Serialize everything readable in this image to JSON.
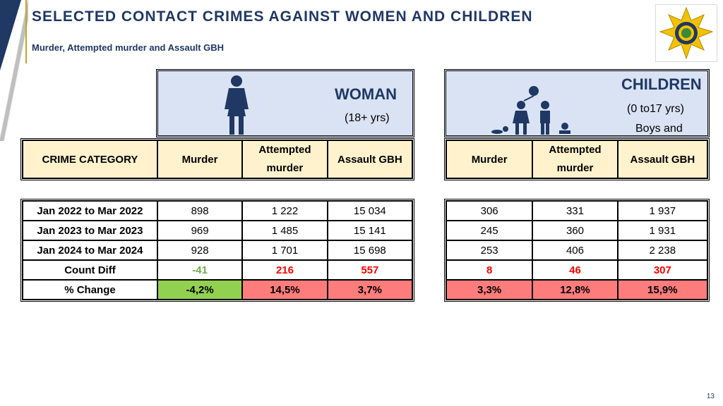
{
  "page": {
    "title": "SELECTED CONTACT CRIMES AGAINST WOMEN AND CHILDREN",
    "subtitle": "Murder, Attempted murder and Assault GBH",
    "page_number": "13"
  },
  "woman_header": {
    "title": "WOMAN",
    "age": "(18+ yrs)"
  },
  "children_header": {
    "title": "CHILDREN",
    "age": "(0 to17 yrs)",
    "note": "Boys and"
  },
  "columns": {
    "category": "CRIME CATEGORY",
    "murder": "Murder",
    "attempted_murder_1": "Attempted",
    "attempted_murder_2": "murder",
    "assault": "Assault GBH"
  },
  "rows": [
    {
      "label": "Jan 2022 to Mar 2022",
      "women": [
        "898",
        "1 222",
        "15 034"
      ],
      "children": [
        "306",
        "331",
        "1 937"
      ]
    },
    {
      "label": "Jan 2023 to Mar 2023",
      "women": [
        "969",
        "1 485",
        "15 141"
      ],
      "children": [
        "245",
        "360",
        "1 931"
      ]
    },
    {
      "label": "Jan 2024 to Mar 2024",
      "women": [
        "928",
        "1 701",
        "15 698"
      ],
      "children": [
        "253",
        "406",
        "2 238"
      ]
    }
  ],
  "count_diff": {
    "label": "Count Diff",
    "women": [
      "-41",
      "216",
      "557"
    ],
    "children": [
      "8",
      "46",
      "307"
    ]
  },
  "pct_change": {
    "label": "% Change",
    "women": [
      "-4,2%",
      "14,5%",
      "3,7%"
    ],
    "children": [
      "3,3%",
      "12,8%",
      "15,9%"
    ]
  },
  "colors": {
    "title": "#1f3864",
    "header_bg": "#dae3f3",
    "col_header_bg": "#fff2cc",
    "increase": "#ff7c7c",
    "decrease": "#92d050"
  }
}
